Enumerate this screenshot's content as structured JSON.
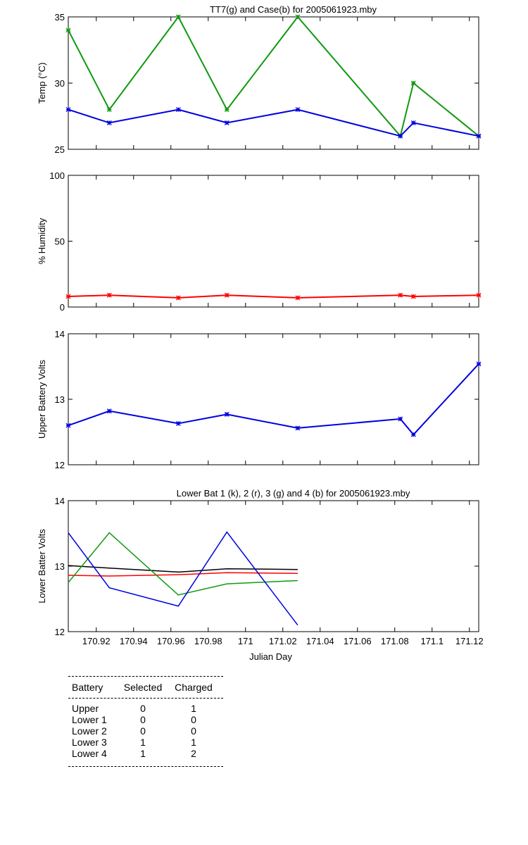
{
  "colors": {
    "k": "#000000",
    "r": "#ff0000",
    "g": "#119911",
    "b": "#0000e0"
  },
  "chart_data": [
    {
      "type": "line",
      "title": "TT7(g) and Case(b) for 2005061923.mby",
      "xlabel": "",
      "ylabel": "Temp  (°C)",
      "xlim": [
        170.905,
        171.125
      ],
      "ylim": [
        25,
        35
      ],
      "yticks": [
        25,
        30,
        35
      ],
      "ytick_labels": [
        "25",
        "30",
        "35"
      ],
      "xticks": [
        170.92,
        170.94,
        170.96,
        170.98,
        171,
        171.02,
        171.04,
        171.06,
        171.08,
        171.1,
        171.12
      ],
      "xtick_labels": [],
      "markers": true,
      "series": [
        {
          "color": "g",
          "x": [
            170.905,
            170.927,
            170.964,
            170.99,
            171.028,
            171.083,
            171.09,
            171.125
          ],
          "values": [
            34,
            28,
            35,
            28,
            35,
            26,
            30,
            26
          ]
        },
        {
          "color": "b",
          "x": [
            170.905,
            170.927,
            170.964,
            170.99,
            171.028,
            171.083,
            171.09,
            171.125
          ],
          "values": [
            28,
            27,
            28,
            27,
            28,
            26,
            27,
            26
          ]
        }
      ]
    },
    {
      "type": "line",
      "title": "",
      "xlabel": "",
      "ylabel": "% Humidity",
      "xlim": [
        170.905,
        171.125
      ],
      "ylim": [
        0,
        100
      ],
      "yticks": [
        0,
        50,
        100
      ],
      "ytick_labels": [
        "0",
        "50",
        "100"
      ],
      "xticks": [
        170.92,
        170.94,
        170.96,
        170.98,
        171,
        171.02,
        171.04,
        171.06,
        171.08,
        171.1,
        171.12
      ],
      "xtick_labels": [],
      "markers": true,
      "series": [
        {
          "color": "r",
          "x": [
            170.905,
            170.927,
            170.964,
            170.99,
            171.028,
            171.083,
            171.09,
            171.125
          ],
          "values": [
            8,
            9,
            7,
            9,
            7,
            9,
            8,
            9
          ]
        }
      ]
    },
    {
      "type": "line",
      "title": "",
      "xlabel": "",
      "ylabel": "Upper Battery Volts",
      "xlim": [
        170.905,
        171.125
      ],
      "ylim": [
        12,
        14
      ],
      "yticks": [
        12,
        13,
        14
      ],
      "ytick_labels": [
        "12",
        "13",
        "14"
      ],
      "xticks": [
        170.92,
        170.94,
        170.96,
        170.98,
        171,
        171.02,
        171.04,
        171.06,
        171.08,
        171.1,
        171.12
      ],
      "xtick_labels": [],
      "markers": true,
      "series": [
        {
          "color": "b",
          "x": [
            170.905,
            170.927,
            170.964,
            170.99,
            171.028,
            171.083,
            171.09,
            171.125
          ],
          "values": [
            12.6,
            12.82,
            12.63,
            12.77,
            12.56,
            12.7,
            12.46,
            13.54
          ]
        }
      ]
    },
    {
      "type": "line",
      "title": "Lower Bat 1 (k), 2 (r), 3 (g) and 4 (b) for 2005061923.mby",
      "xlabel": "Julian Day",
      "ylabel": "Lower Batter Volts",
      "xlim": [
        170.905,
        171.125
      ],
      "ylim": [
        12,
        14
      ],
      "yticks": [
        12,
        13,
        14
      ],
      "ytick_labels": [
        "12",
        "13",
        "14"
      ],
      "xticks": [
        170.92,
        170.94,
        170.96,
        170.98,
        171,
        171.02,
        171.04,
        171.06,
        171.08,
        171.1,
        171.12
      ],
      "xtick_labels": [
        "170.92",
        "170.94",
        "170.96",
        "170.98",
        "171",
        "171.02",
        "171.04",
        "171.06",
        "171.08",
        "171.1",
        "171.12"
      ],
      "markers": false,
      "series": [
        {
          "color": "k",
          "x": [
            170.905,
            170.927,
            170.964,
            170.99,
            171.028
          ],
          "values": [
            13.01,
            12.97,
            12.91,
            12.96,
            12.95
          ]
        },
        {
          "color": "r",
          "x": [
            170.905,
            170.927,
            170.964,
            170.99,
            171.028
          ],
          "values": [
            12.86,
            12.85,
            12.87,
            12.9,
            12.89
          ]
        },
        {
          "color": "g",
          "x": [
            170.905,
            170.927,
            170.964,
            170.99,
            171.028
          ],
          "values": [
            12.75,
            13.51,
            12.56,
            12.73,
            12.78
          ]
        },
        {
          "color": "b",
          "x": [
            170.905,
            170.927,
            170.964,
            170.99,
            171.028
          ],
          "values": [
            13.51,
            12.67,
            12.39,
            13.52,
            12.1
          ]
        }
      ]
    }
  ],
  "status_table": {
    "headers": [
      "Battery",
      "Selected",
      "Charged"
    ],
    "rows": [
      [
        "Upper",
        "0",
        "1"
      ],
      [
        "Lower 1",
        "0",
        "0"
      ],
      [
        "Lower 2",
        "0",
        "0"
      ],
      [
        "Lower 3",
        "1",
        "1"
      ],
      [
        "Lower 4",
        "1",
        "2"
      ]
    ]
  }
}
